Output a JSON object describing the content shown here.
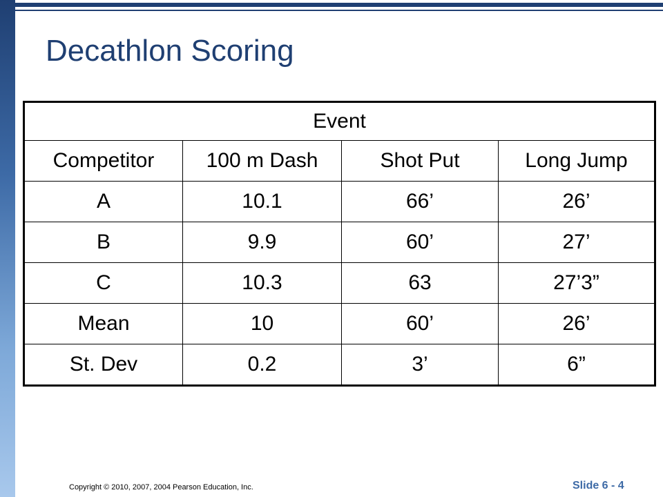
{
  "slide": {
    "title": "Decathlon Scoring",
    "copyright": "Copyright © 2010, 2007, 2004 Pearson Education, Inc.",
    "slide_number": "Slide 6 - 4"
  },
  "table": {
    "group_header": "Event",
    "columns": [
      "Competitor",
      "100 m Dash",
      "Shot Put",
      "Long Jump"
    ],
    "rows": [
      [
        "A",
        "10.1",
        "66’",
        "26’"
      ],
      [
        "B",
        "9.9",
        "60’",
        "27’"
      ],
      [
        "C",
        "10.3",
        "63",
        "27’3”"
      ],
      [
        "Mean",
        "10",
        "60’",
        "26’"
      ],
      [
        "St. Dev",
        "0.2",
        "3’",
        "6”"
      ]
    ]
  },
  "colors": {
    "title": "#1f3f72",
    "accent_bar": "#1f3f72",
    "slide_number": "#3d6aa6"
  }
}
